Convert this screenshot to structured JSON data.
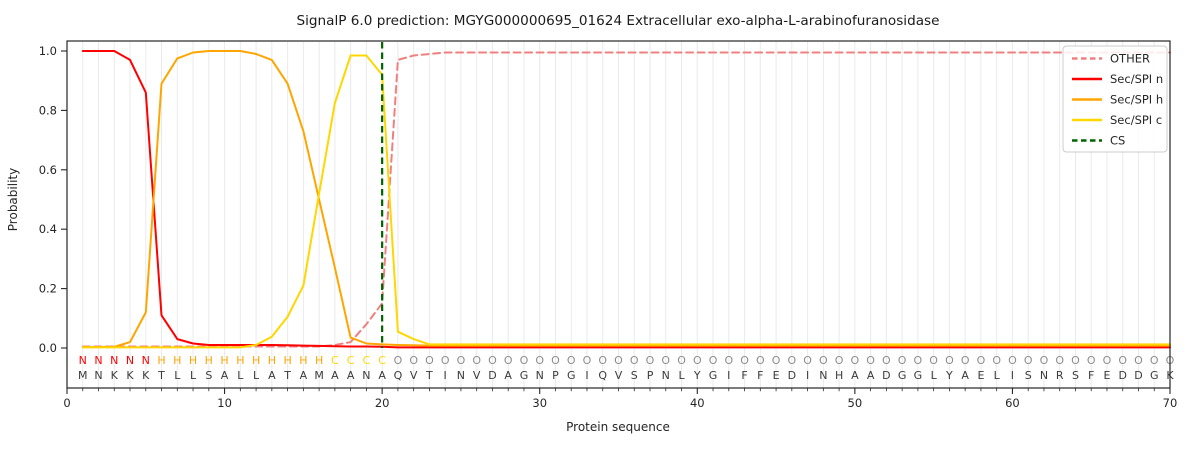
{
  "title": "SignalP 6.0 prediction: MGYG000000695_01624 Extracellular exo-alpha-L-arabinofuranosidase",
  "axes": {
    "xlabel": "Protein sequence",
    "ylabel": "Probability"
  },
  "colors": {
    "other": "#f08080",
    "sec_spi_n": "#ff0000",
    "sec_spi_h": "#ffa500",
    "sec_spi_c": "#ffd700",
    "cs": "#006400",
    "grid": "#eaeaea",
    "spine": "#262626",
    "sequence_letter": "#3a3a3a",
    "region_N": "#ff0000",
    "region_H": "#ffa500",
    "region_C": "#ffd700",
    "region_O": "#8c8c8c"
  },
  "chart_data": {
    "type": "line",
    "title": "SignalP 6.0 prediction: MGYG000000695_01624 Extracellular exo-alpha-L-arabinofuranosidase",
    "xlabel": "Protein sequence",
    "ylabel": "Probability",
    "xlim": [
      0,
      70
    ],
    "ylim": [
      -0.135,
      1.035
    ],
    "x_ticks": [
      0,
      10,
      20,
      30,
      40,
      50,
      60,
      70
    ],
    "y_ticks": [
      0.0,
      0.2,
      0.4,
      0.6,
      0.8,
      1.0
    ],
    "grid": "light vertical gridline at every residue position",
    "legend_position": "upper right",
    "x_is_residue_index_starting_at_1": true,
    "sequence": "MNKKKTLLSALLATAMAANAQVTINVDAGNPGIQVSPNLYGIFFEDINHAADGGLYAELISNRSFEDDGK",
    "region_labels": "NNNNNHHHHHHHHHHHCCCCOOOOOOOOOOOOOOOOOOOOOOOOOOOOOOOOOOOOOOOOOOOOOOOOOO",
    "cs_position": 20,
    "series": [
      {
        "name": "OTHER",
        "color_key": "other",
        "style": "dashed",
        "values": [
          0.005,
          0.005,
          0.005,
          0.005,
          0.005,
          0.005,
          0.005,
          0.005,
          0.005,
          0.005,
          0.005,
          0.005,
          0.005,
          0.005,
          0.005,
          0.005,
          0.01,
          0.02,
          0.08,
          0.15,
          0.97,
          0.985,
          0.99,
          0.995,
          0.995,
          0.995,
          0.995,
          0.995,
          0.995,
          0.995,
          0.995,
          0.995,
          0.995,
          0.995,
          0.995,
          0.995,
          0.995,
          0.995,
          0.995,
          0.995,
          0.995,
          0.995,
          0.995,
          0.995,
          0.995,
          0.995,
          0.995,
          0.995,
          0.995,
          0.995,
          0.995,
          0.995,
          0.995,
          0.995,
          0.995,
          0.995,
          0.995,
          0.995,
          0.995,
          0.995,
          0.995,
          0.995,
          0.995,
          0.995,
          0.995,
          0.995,
          0.995,
          0.995,
          0.995,
          0.995
        ]
      },
      {
        "name": "Sec/SPI n",
        "color_key": "sec_spi_n",
        "style": "solid",
        "values": [
          1.0,
          1.0,
          1.0,
          0.97,
          0.86,
          0.11,
          0.03,
          0.015,
          0.01,
          0.01,
          0.01,
          0.01,
          0.01,
          0.009,
          0.008,
          0.007,
          0.006,
          0.005,
          0.005,
          0.004,
          0.002,
          0.002,
          0.002,
          0.002,
          0.002,
          0.002,
          0.002,
          0.002,
          0.002,
          0.002,
          0.002,
          0.002,
          0.002,
          0.002,
          0.002,
          0.002,
          0.002,
          0.002,
          0.002,
          0.002,
          0.002,
          0.002,
          0.002,
          0.002,
          0.002,
          0.002,
          0.002,
          0.002,
          0.002,
          0.002,
          0.002,
          0.002,
          0.002,
          0.002,
          0.002,
          0.002,
          0.002,
          0.002,
          0.002,
          0.002,
          0.002,
          0.002,
          0.002,
          0.002,
          0.002,
          0.002,
          0.002,
          0.002,
          0.002,
          0.002
        ]
      },
      {
        "name": "Sec/SPI h",
        "color_key": "sec_spi_h",
        "style": "solid",
        "values": [
          0.003,
          0.003,
          0.004,
          0.02,
          0.12,
          0.89,
          0.975,
          0.995,
          1.0,
          1.0,
          1.0,
          0.99,
          0.97,
          0.89,
          0.73,
          0.5,
          0.27,
          0.035,
          0.015,
          0.012,
          0.01,
          0.009,
          0.008,
          0.008,
          0.008,
          0.008,
          0.008,
          0.008,
          0.008,
          0.008,
          0.008,
          0.008,
          0.008,
          0.008,
          0.008,
          0.008,
          0.008,
          0.008,
          0.008,
          0.008,
          0.008,
          0.008,
          0.008,
          0.008,
          0.008,
          0.008,
          0.008,
          0.008,
          0.008,
          0.008,
          0.008,
          0.008,
          0.008,
          0.008,
          0.008,
          0.008,
          0.008,
          0.008,
          0.008,
          0.008,
          0.008,
          0.008,
          0.008,
          0.008,
          0.008,
          0.008,
          0.008,
          0.008,
          0.008,
          0.008
        ]
      },
      {
        "name": "Sec/SPI c",
        "color_key": "sec_spi_c",
        "style": "solid",
        "values": [
          0.002,
          0.002,
          0.002,
          0.002,
          0.002,
          0.002,
          0.002,
          0.002,
          0.002,
          0.002,
          0.002,
          0.01,
          0.038,
          0.105,
          0.21,
          0.52,
          0.825,
          0.985,
          0.985,
          0.92,
          0.055,
          0.03,
          0.012,
          0.012,
          0.012,
          0.012,
          0.012,
          0.012,
          0.012,
          0.012,
          0.012,
          0.012,
          0.012,
          0.012,
          0.012,
          0.012,
          0.012,
          0.012,
          0.012,
          0.012,
          0.012,
          0.012,
          0.012,
          0.012,
          0.012,
          0.012,
          0.012,
          0.012,
          0.012,
          0.012,
          0.012,
          0.012,
          0.012,
          0.012,
          0.012,
          0.012,
          0.012,
          0.012,
          0.012,
          0.012,
          0.012,
          0.012,
          0.012,
          0.012,
          0.012,
          0.012,
          0.012,
          0.012,
          0.012,
          0.012
        ]
      },
      {
        "name": "CS",
        "color_key": "cs",
        "style": "dashed_vertical",
        "position": 20
      }
    ],
    "legend_entries": [
      {
        "label": "OTHER",
        "color_key": "other",
        "dashed": true
      },
      {
        "label": "Sec/SPI n",
        "color_key": "sec_spi_n",
        "dashed": false
      },
      {
        "label": "Sec/SPI h",
        "color_key": "sec_spi_h",
        "dashed": false
      },
      {
        "label": "Sec/SPI c",
        "color_key": "sec_spi_c",
        "dashed": false
      },
      {
        "label": "CS",
        "color_key": "cs",
        "dashed": true
      }
    ]
  }
}
